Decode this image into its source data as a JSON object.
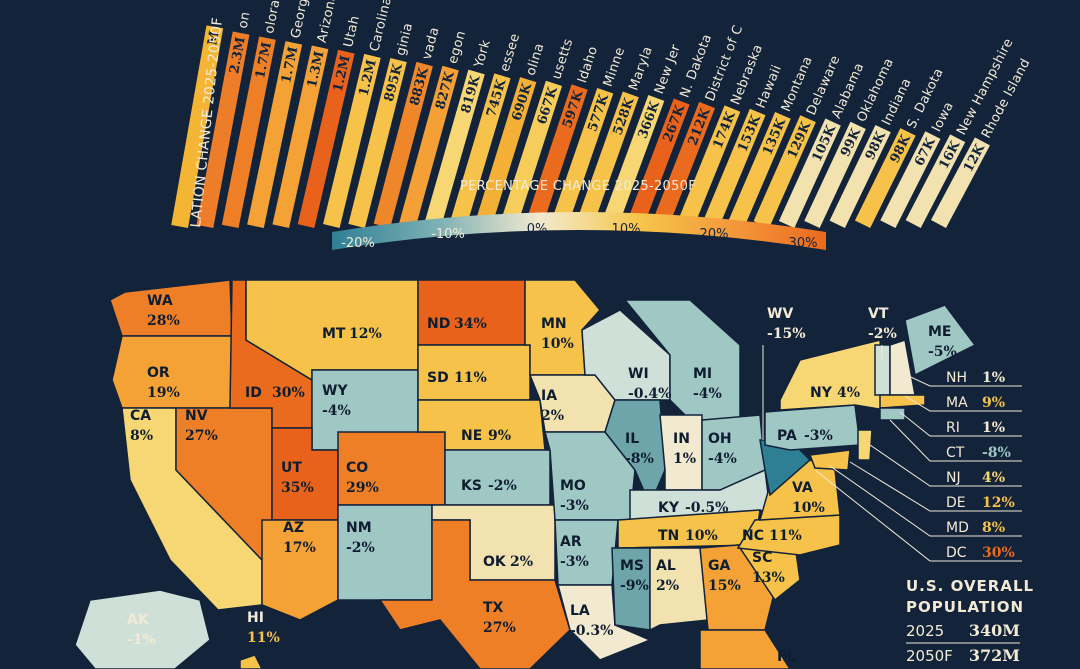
{
  "axis_title": "LATION CHANGE 2025-2050F",
  "legend": {
    "title": "PERCENTAGE CHANGE 2025-2050F",
    "ticks": [
      "-20%",
      "-10%",
      "0%",
      "10%",
      "20%",
      "30%"
    ],
    "colors": [
      "#2f7f94",
      "#9fc7c4",
      "#f2ead0",
      "#f6c64a",
      "#f3963a",
      "#ea6a1e"
    ]
  },
  "bars": [
    {
      "name": "",
      "value": "M",
      "color": "#f4b534"
    },
    {
      "name": "on",
      "value": "2.3M",
      "color": "#ee7d2a"
    },
    {
      "name": "olorado",
      "value": "1.7M",
      "color": "#ef7f27"
    },
    {
      "name": "Georgia",
      "value": "1.7M",
      "color": "#f4a236"
    },
    {
      "name": "Arizona",
      "value": "1.3M",
      "color": "#f4a236"
    },
    {
      "name": "Utah",
      "value": "1.2M",
      "color": "#e9621c"
    },
    {
      "name": "Carolina",
      "value": "1.2M",
      "color": "#f6c24a"
    },
    {
      "name": "ginia",
      "value": "895K",
      "color": "#f6c24a"
    },
    {
      "name": "vada",
      "value": "883K",
      "color": "#f0862a"
    },
    {
      "name": "egon",
      "value": "827K",
      "color": "#f4a036"
    },
    {
      "name": "York",
      "value": "819K",
      "color": "#f7d774"
    },
    {
      "name": "essee",
      "value": "745K",
      "color": "#f6c24a"
    },
    {
      "name": "olina",
      "value": "690K",
      "color": "#f4b036"
    },
    {
      "name": "usetts",
      "value": "667K",
      "color": "#f6cc5a"
    },
    {
      "name": "Idaho",
      "value": "597K",
      "color": "#ea6a1e"
    },
    {
      "name": "Minne",
      "value": "577K",
      "color": "#f6c24a"
    },
    {
      "name": "Maryla",
      "value": "528K",
      "color": "#f6c24a"
    },
    {
      "name": "New Jer",
      "value": "366K",
      "color": "#f7d774"
    },
    {
      "name": "N. Dakota",
      "value": "267K",
      "color": "#e9621c"
    },
    {
      "name": "District of C",
      "value": "212K",
      "color": "#ea6a1e"
    },
    {
      "name": "Nebraska",
      "value": "174K",
      "color": "#f6c24a"
    },
    {
      "name": "Hawaii",
      "value": "153K",
      "color": "#f6c24a"
    },
    {
      "name": "Montana",
      "value": "135K",
      "color": "#f6c24a"
    },
    {
      "name": "Delaware",
      "value": "129K",
      "color": "#f6c24a"
    },
    {
      "name": "Alabama",
      "value": "105K",
      "color": "#f2e2b0"
    },
    {
      "name": "Oklahoma",
      "value": "99K",
      "color": "#f2e2b0"
    },
    {
      "name": "Indiana",
      "value": "98K",
      "color": "#f2e2b0"
    },
    {
      "name": "S. Dakota",
      "value": "98K",
      "color": "#f6c24a"
    },
    {
      "name": "Iowa",
      "value": "67K",
      "color": "#f2e2b0"
    },
    {
      "name": "New Hampshire",
      "value": "16K",
      "color": "#f2e2b0"
    },
    {
      "name": "Rhode Island",
      "value": "12K",
      "color": "#f2e2b0"
    }
  ],
  "states": [
    {
      "code": "WA",
      "pct": "28%"
    },
    {
      "code": "OR",
      "pct": "19%"
    },
    {
      "code": "CA",
      "pct": "8%"
    },
    {
      "code": "NV",
      "pct": "27%"
    },
    {
      "code": "ID",
      "pct": "30%"
    },
    {
      "code": "MT",
      "pct": "12%"
    },
    {
      "code": "WY",
      "pct": "-4%"
    },
    {
      "code": "UT",
      "pct": "35%"
    },
    {
      "code": "CO",
      "pct": "29%"
    },
    {
      "code": "AZ",
      "pct": "17%"
    },
    {
      "code": "NM",
      "pct": "-2%"
    },
    {
      "code": "ND",
      "pct": "34%"
    },
    {
      "code": "SD",
      "pct": "11%"
    },
    {
      "code": "NE",
      "pct": "9%"
    },
    {
      "code": "KS",
      "pct": "-2%"
    },
    {
      "code": "OK",
      "pct": "2%"
    },
    {
      "code": "TX",
      "pct": "27%"
    },
    {
      "code": "MN",
      "pct": "10%"
    },
    {
      "code": "IA",
      "pct": "2%"
    },
    {
      "code": "MO",
      "pct": "-3%"
    },
    {
      "code": "AR",
      "pct": "-3%"
    },
    {
      "code": "LA",
      "pct": "-0.3%"
    },
    {
      "code": "WI",
      "pct": "-0.4%"
    },
    {
      "code": "MI",
      "pct": "-4%"
    },
    {
      "code": "IL",
      "pct": "-8%"
    },
    {
      "code": "IN",
      "pct": "1%"
    },
    {
      "code": "OH",
      "pct": "-4%"
    },
    {
      "code": "KY",
      "pct": "-0.5%"
    },
    {
      "code": "TN",
      "pct": "10%"
    },
    {
      "code": "MS",
      "pct": "-9%"
    },
    {
      "code": "AL",
      "pct": "2%"
    },
    {
      "code": "GA",
      "pct": "15%"
    },
    {
      "code": "SC",
      "pct": "13%"
    },
    {
      "code": "NC",
      "pct": "11%"
    },
    {
      "code": "VA",
      "pct": "10%"
    },
    {
      "code": "PA",
      "pct": "-3%"
    },
    {
      "code": "NY",
      "pct": "4%"
    },
    {
      "code": "VT",
      "pct": "-2%"
    },
    {
      "code": "ME",
      "pct": "-5%"
    },
    {
      "code": "WV",
      "pct": "-15%"
    },
    {
      "code": "AK",
      "pct": "-1%"
    },
    {
      "code": "HI",
      "pct": "11%"
    },
    {
      "code": "FL",
      "pct": ""
    }
  ],
  "side_states": [
    {
      "code": "NH",
      "pct": "1%",
      "color": "#f2ead0"
    },
    {
      "code": "MA",
      "pct": "9%",
      "color": "#f6c24a"
    },
    {
      "code": "RI",
      "pct": "1%",
      "color": "#f2ead0"
    },
    {
      "code": "CT",
      "pct": "-8%",
      "color": "#9fc7c4"
    },
    {
      "code": "NJ",
      "pct": "4%",
      "color": "#f7d774"
    },
    {
      "code": "DE",
      "pct": "12%",
      "color": "#f6c24a"
    },
    {
      "code": "MD",
      "pct": "8%",
      "color": "#f6c24a"
    },
    {
      "code": "DC",
      "pct": "30%",
      "color": "#ea6a1e"
    }
  ],
  "overall": {
    "title_line1": "U.S. OVERALL",
    "title_line2": "POPULATION",
    "rows": [
      {
        "year": "2025",
        "value": "340M"
      },
      {
        "year": "2050F",
        "value": "372M"
      }
    ]
  }
}
